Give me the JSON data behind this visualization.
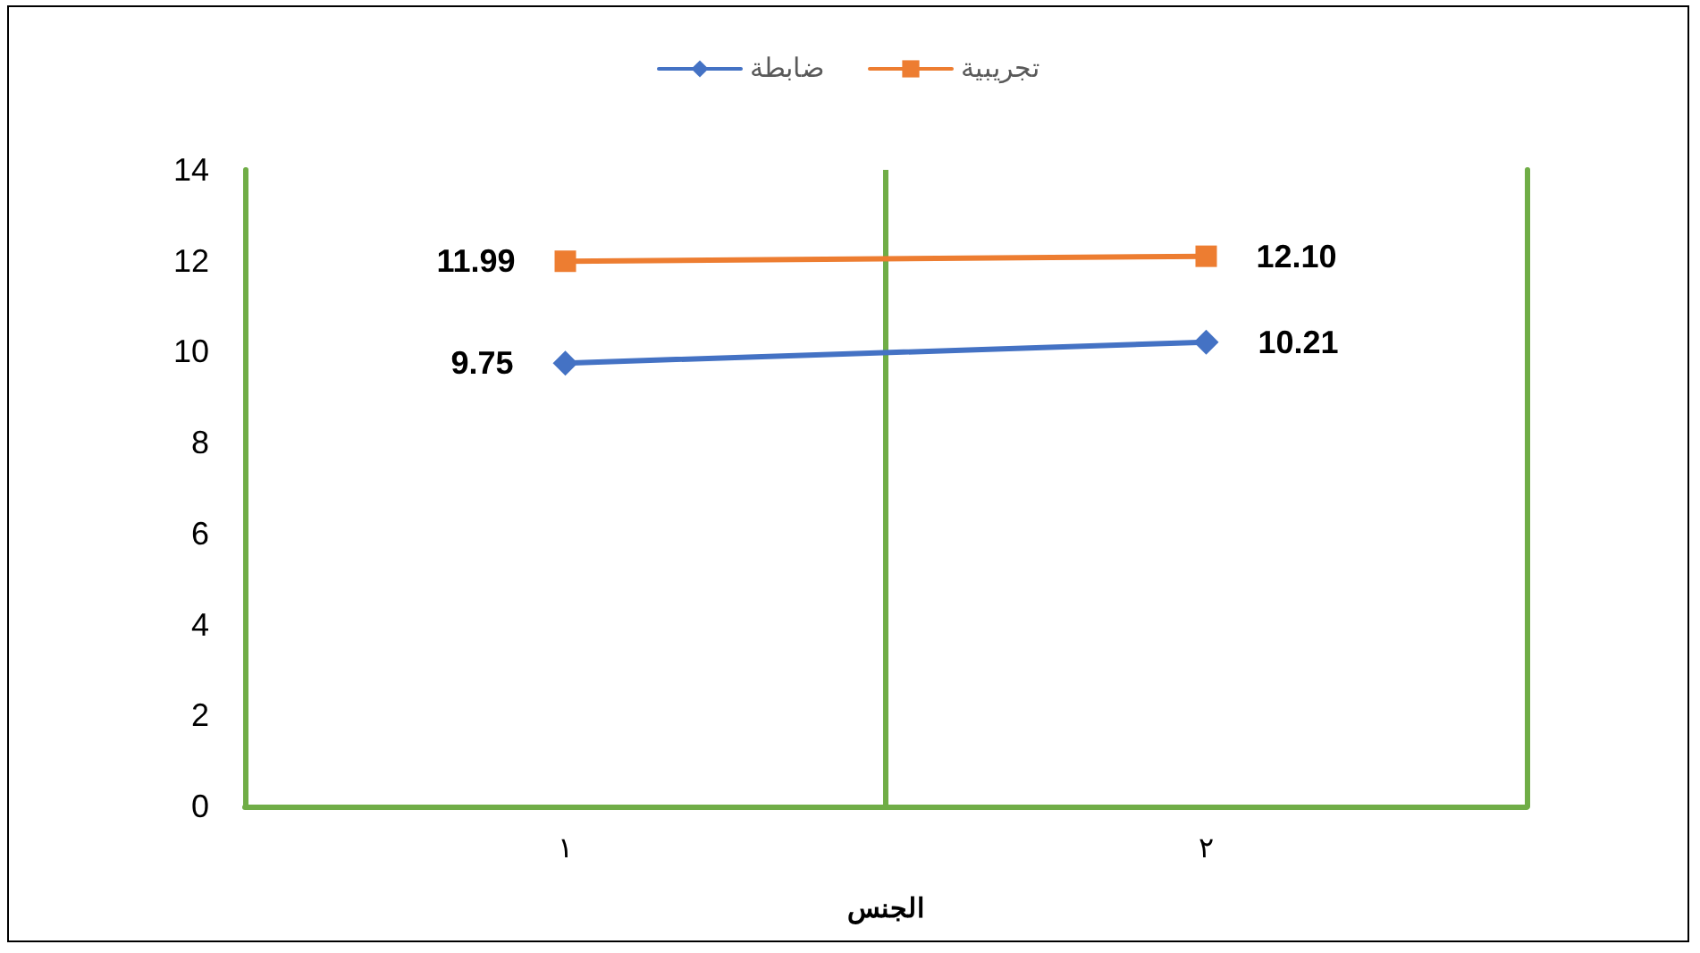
{
  "chart_data": {
    "type": "line",
    "xlabel": "الجنس",
    "x": [
      1,
      2
    ],
    "series": [
      {
        "name": "ضابطة",
        "color": "#4472c4",
        "values": [
          9.75,
          10.21
        ],
        "value_labels": [
          "9.75",
          "10.21"
        ],
        "marker": "diamond"
      },
      {
        "name": "تجريبية",
        "color": "#ed7d31",
        "values": [
          11.99,
          12.1
        ],
        "value_labels": [
          "11.99",
          "12.10"
        ],
        "marker": "square"
      }
    ],
    "xlim": [
      0.5,
      2.5
    ],
    "xticks": [
      {
        "value": 1,
        "label": "١"
      },
      {
        "value": 2,
        "label": "٢"
      }
    ],
    "ylim": [
      0,
      14
    ],
    "yticks": [
      0,
      2,
      4,
      6,
      8,
      10,
      12,
      14
    ],
    "ref_lines": [
      {
        "axis": "x",
        "value": 1.5,
        "color": "#70ad47"
      }
    ],
    "legend": "top",
    "line_style": "solid"
  }
}
